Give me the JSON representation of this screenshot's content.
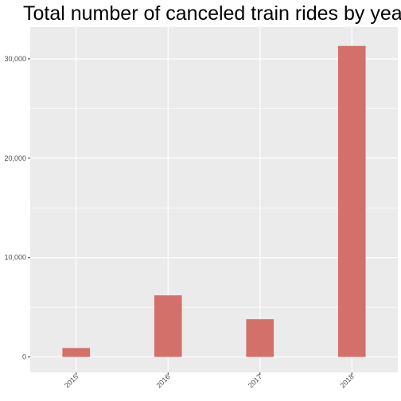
{
  "chart_data": {
    "type": "bar",
    "title": "Total number of canceled train rides by year",
    "xlabel": "",
    "ylabel": "",
    "categories": [
      "2015",
      "2016",
      "2017",
      "2018"
    ],
    "values": [
      900,
      6200,
      3800,
      31300
    ],
    "ylim": [
      -1550,
      33200
    ],
    "yticks": [
      0,
      10000,
      20000,
      30000
    ],
    "ytick_labels": [
      "0",
      "10,000",
      "20,000",
      "30,000"
    ],
    "grid": true,
    "legend": "none",
    "bar_color": "#d4706a",
    "panel_background": "#ebebeb",
    "grid_color": "#ffffff"
  }
}
